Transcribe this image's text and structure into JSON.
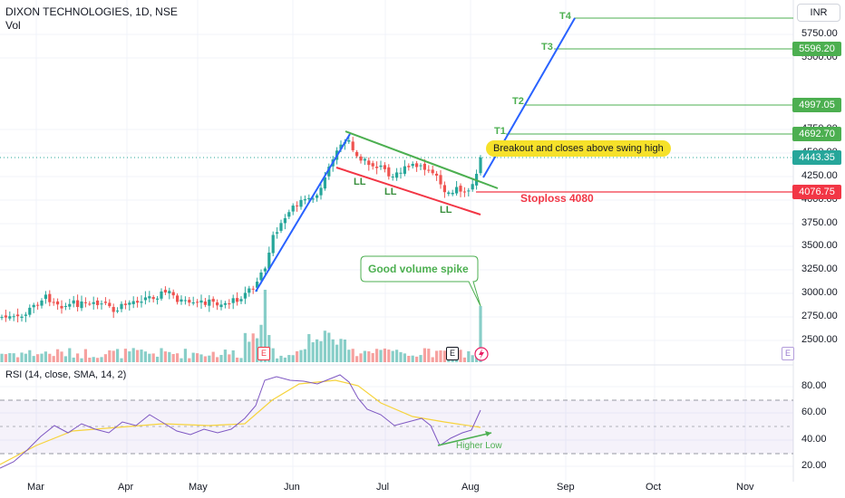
{
  "header": {
    "symbol_title": "DIXON TECHNOLOGIES, 1D, NSE",
    "volume_label": "Vol",
    "currency": "INR"
  },
  "rsi_panel": {
    "label": "RSI (14, close, SMA, 14, 2)",
    "y_ticks": [
      "80.00",
      "60.00",
      "40.00",
      "20.00"
    ]
  },
  "price_axis": {
    "ticks": [
      "5750.00",
      "5500.00",
      "4750.00",
      "4500.00",
      "4250.00",
      "4000.00",
      "3750.00",
      "3500.00",
      "3250.00",
      "3000.00",
      "2750.00",
      "2500.00"
    ]
  },
  "time_axis": {
    "ticks": [
      "Mar",
      "Apr",
      "May",
      "Jun",
      "Jul",
      "Aug",
      "Sep",
      "Oct",
      "Nov"
    ]
  },
  "price_tags": {
    "t4": "",
    "t3": "5596.20",
    "t2": "4997.05",
    "t1": "4692.70",
    "current": "4443.35",
    "stoploss": "4076.75"
  },
  "annotations": {
    "t4_label": "T4",
    "t3_label": "T3",
    "t2_label": "T2",
    "t1_label": "T1",
    "breakout_text": "Breakout and closes above swing high",
    "stoploss_text": "Stoploss 4080",
    "ll_1": "LL",
    "ll_2": "LL",
    "ll_3": "LL",
    "volume_text": "Good volume spike",
    "higher_low_text": "Higher Low",
    "earnings_1": "E",
    "earnings_2": "E",
    "earnings_3": "E"
  },
  "colors": {
    "up": "#26a69a",
    "down": "#ef5350",
    "target_line": "#4caf50",
    "stoploss": "#f23645",
    "trend_blue": "#2962ff",
    "rsi_line": "#7e57c2",
    "rsi_ma": "#f6d33c",
    "callout_bg": "#f6e12a"
  },
  "chart_data": [
    {
      "type": "candlestick",
      "title": "DIXON TECHNOLOGIES, 1D, NSE",
      "x_range": [
        "Feb",
        "Nov"
      ],
      "ylim": [
        2400,
        5950
      ],
      "key_levels": {
        "T1": 4692.7,
        "T2": 4997.05,
        "T3": 5596.2,
        "T4": 5900,
        "current": 4443.35,
        "stoploss": 4076.75
      },
      "approx_closes": {
        "x": [
          "Mar",
          "Apr",
          "May",
          "Jun",
          "Jul",
          "Aug"
        ],
        "y": [
          2800,
          2950,
          2900,
          4250,
          4300,
          4443.35
        ]
      },
      "swing_high": 4720,
      "breakout_level": 4450
    },
    {
      "type": "line",
      "title": "RSI (14, close, SMA, 14, 2)",
      "ylim": [
        10,
        95
      ],
      "y_ticks": [
        80,
        60,
        40,
        20
      ],
      "bands": {
        "upper": 70,
        "middle": 50,
        "lower": 30
      },
      "approx_values": {
        "x": [
          "Mar",
          "Apr",
          "May",
          "Jun",
          "Jul",
          "Aug"
        ],
        "y": [
          45,
          50,
          48,
          88,
          50,
          58
        ]
      }
    }
  ]
}
